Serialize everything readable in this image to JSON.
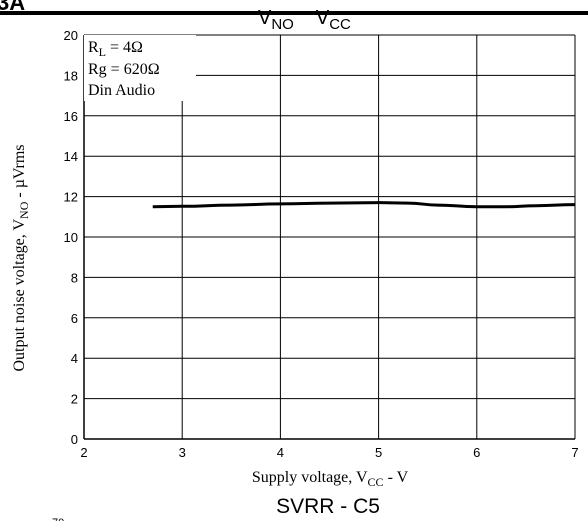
{
  "header": {
    "fragment_left": "3A",
    "title_vno_main": "V",
    "title_vno_sub": "NO",
    "title_vcc_main": "V",
    "title_vcc_sub": "CC"
  },
  "legend": {
    "line1_main": "R",
    "line1_sub": "L",
    "line1_rest": " = 4Ω",
    "line2": "Rg = 620Ω",
    "line3": "Din Audio"
  },
  "axes": {
    "ylabel_pre": "Output noise voltage, V",
    "ylabel_sub": "NO",
    "ylabel_post": "  -  µVrms",
    "xlabel_pre": "Supply voltage, V",
    "xlabel_sub": "CC",
    "xlabel_post": "  -  V"
  },
  "footer": {
    "next_title": "SVRR  -  C5",
    "bottom_fragment": "70"
  },
  "colors": {
    "line": "#000000",
    "grid": "#000000",
    "background": "#ffffff"
  },
  "chart_data": {
    "type": "line",
    "title": "",
    "xlabel": "Supply voltage, VCC - V",
    "ylabel": "Output noise voltage, VNO - µVrms",
    "xlim": [
      2,
      7
    ],
    "ylim": [
      0,
      20
    ],
    "x_ticks": [
      2,
      3,
      4,
      5,
      6,
      7
    ],
    "y_ticks": [
      0,
      2,
      4,
      6,
      8,
      10,
      12,
      14,
      16,
      18,
      20
    ],
    "grid": true,
    "series": [
      {
        "x": [
          2.7,
          3.0,
          3.5,
          4.0,
          4.5,
          5.0,
          5.3,
          5.6,
          6.0,
          6.3,
          6.6,
          7.0
        ],
        "y": [
          11.5,
          11.52,
          11.58,
          11.64,
          11.68,
          11.7,
          11.68,
          11.58,
          11.5,
          11.5,
          11.55,
          11.6
        ]
      }
    ]
  }
}
